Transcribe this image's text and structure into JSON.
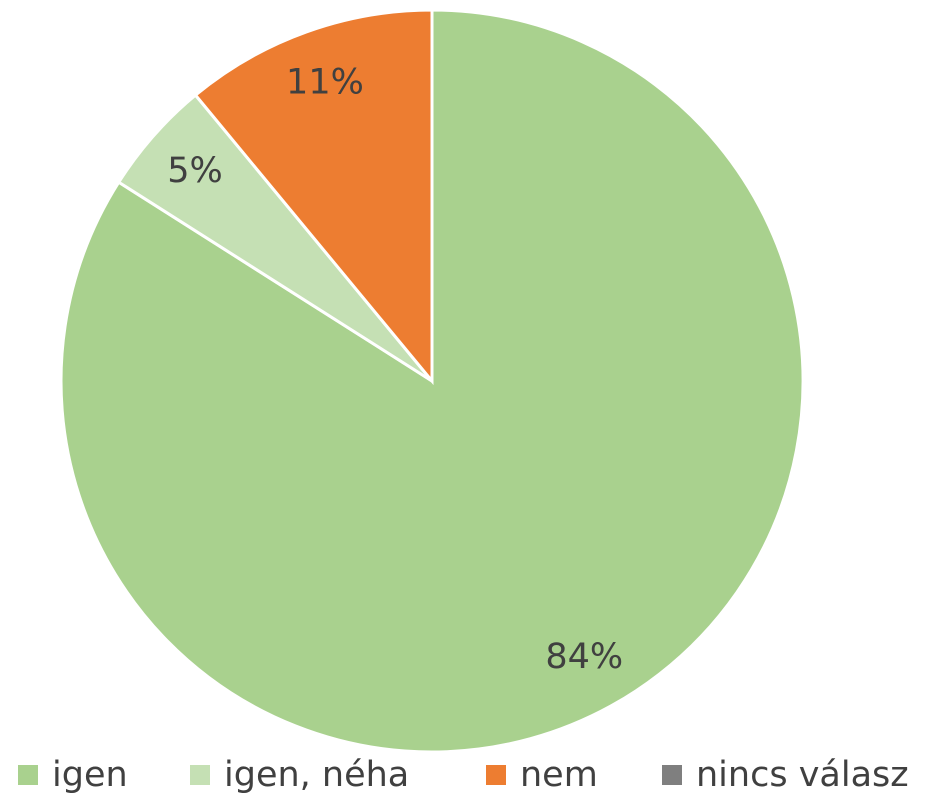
{
  "chart_data": {
    "type": "pie",
    "categories": [
      "igen",
      "igen, néha",
      "nem",
      "nincs válasz"
    ],
    "values": [
      84,
      5,
      11,
      0
    ],
    "value_labels": [
      "84%",
      "5%",
      "11%",
      null
    ],
    "colors": [
      "#a9d18e",
      "#c5e0b4",
      "#ed7d31",
      "#7f7f7f"
    ],
    "legend": "bottom"
  }
}
